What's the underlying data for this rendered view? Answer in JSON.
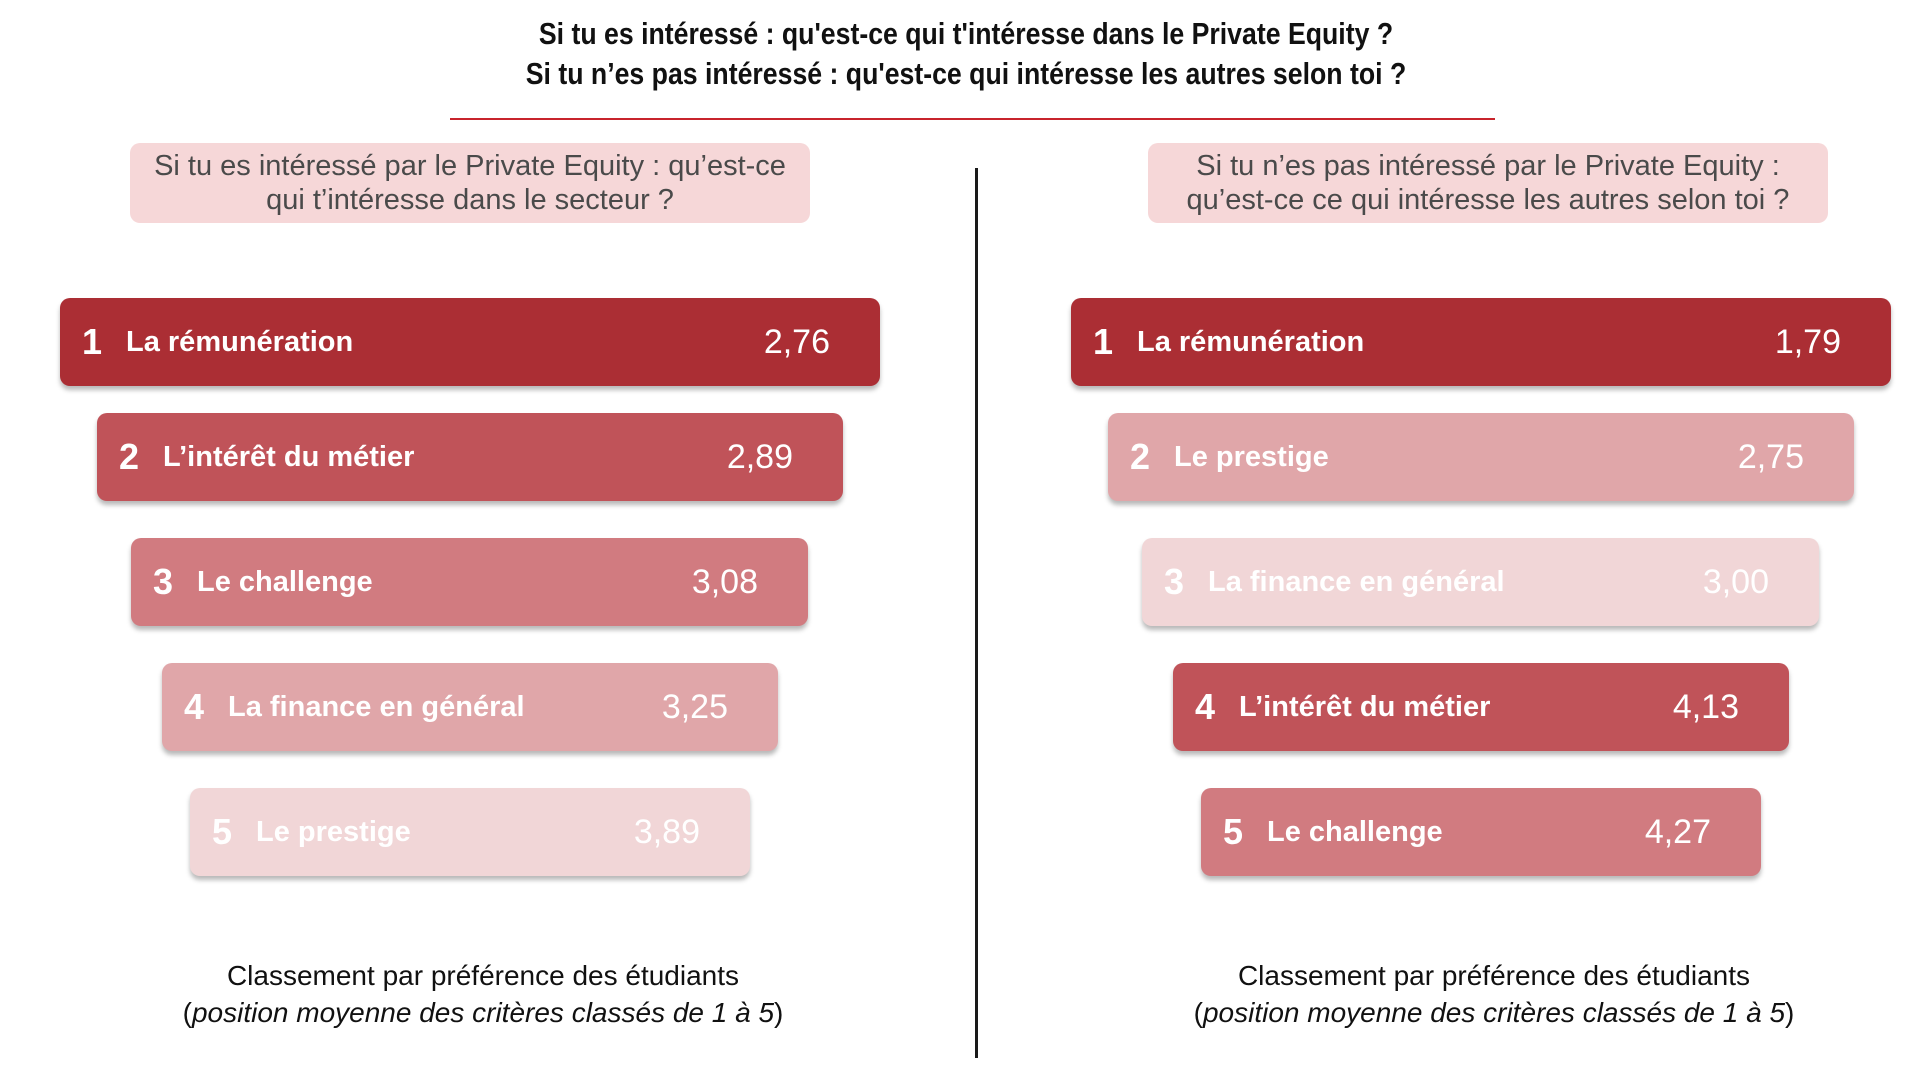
{
  "title_line1": "Si tu es intéressé : qu'est-ce qui t'intéresse dans le Private Equity ?",
  "title_line2": "Si tu n’es pas intéressé : qu'est-ce qui intéresse les autres selon toi ?",
  "chart_data": [
    {
      "type": "bar",
      "question": "Si tu es intéressé par le Private Equity : qu’est-ce qui t’intéresse dans le secteur ?",
      "ranks": [
        "1",
        "2",
        "3",
        "4",
        "5"
      ],
      "categories": [
        "La rémunération",
        "L’intérêt du métier",
        "Le challenge",
        "La finance en général",
        "Le prestige"
      ],
      "values": [
        2.76,
        2.89,
        3.08,
        3.25,
        3.89
      ],
      "value_labels": [
        "2,76",
        "2,89",
        "3,08",
        "3,25",
        "3,89"
      ],
      "colors": [
        "#ab2e34",
        "#c05359",
        "#d17b80",
        "#e0a6a9",
        "#f1d6d7"
      ],
      "caption_line1": "Classement par préférence des étudiants",
      "caption_line2": "position moyenne des critères classés de 1 à 5"
    },
    {
      "type": "bar",
      "question": "Si tu n’es pas intéressé par le Private Equity : qu’est-ce ce qui intéresse les autres selon toi ?",
      "ranks": [
        "1",
        "2",
        "3",
        "4",
        "5"
      ],
      "categories": [
        "La rémunération",
        "Le prestige",
        "La finance en général",
        "L’intérêt du métier",
        "Le challenge"
      ],
      "values": [
        1.79,
        2.75,
        3.0,
        4.13,
        4.27
      ],
      "value_labels": [
        "1,79",
        "2,75",
        "3,00",
        "4,13",
        "4,27"
      ],
      "colors": [
        "#ab2e34",
        "#e0a6a9",
        "#f1d6d7",
        "#c05359",
        "#d17b80"
      ],
      "caption_line1": "Classement par préférence des étudiants",
      "caption_line2": "position moyenne des critères classés de 1 à 5"
    }
  ]
}
